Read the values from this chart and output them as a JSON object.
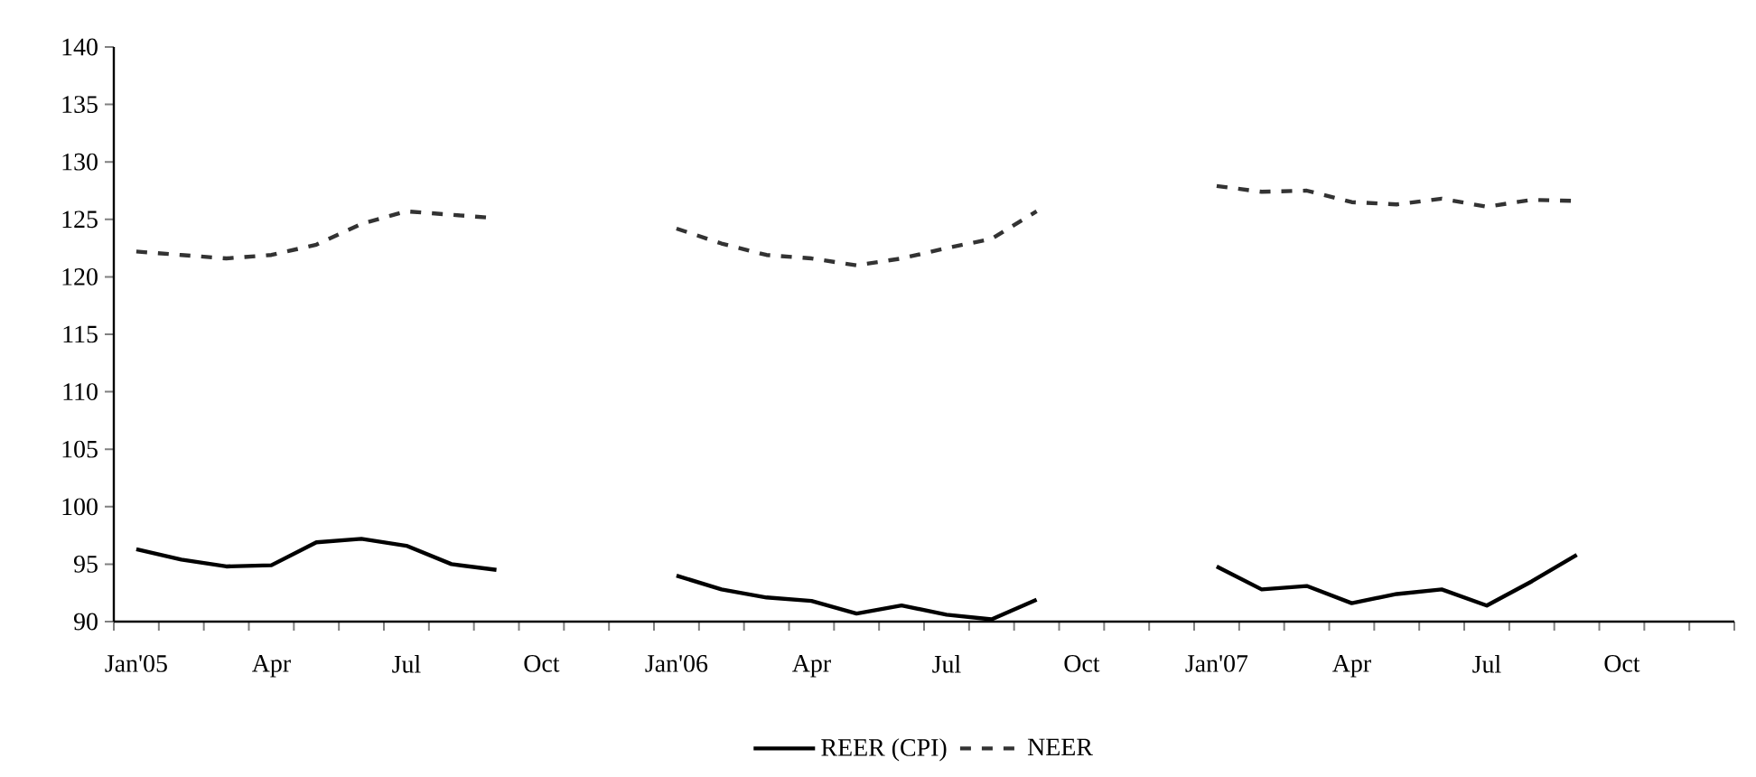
{
  "chart_data": {
    "type": "line",
    "categories": [
      "Jan'05",
      null,
      null,
      "Apr",
      null,
      null,
      "Jul",
      null,
      null,
      "Oct",
      null,
      null,
      "Jan'06",
      null,
      null,
      "Apr",
      null,
      null,
      "Jul",
      null,
      null,
      "Oct",
      null,
      null,
      "Jan'07",
      null,
      null,
      "Apr",
      null,
      null,
      "Jul",
      null,
      null,
      "Oct",
      null,
      null
    ],
    "series": [
      {
        "name": "REER (CPI)",
        "color": "#000000",
        "line_style": "solid",
        "values": [
          96.3,
          95.4,
          94.8,
          94.9,
          96.9,
          97.2,
          96.6,
          95.0,
          94.5,
          null,
          null,
          null,
          94.0,
          92.8,
          92.1,
          91.8,
          90.7,
          91.4,
          90.6,
          90.2,
          91.9,
          null,
          null,
          null,
          94.8,
          92.8,
          93.1,
          91.6,
          92.4,
          92.8,
          91.4,
          93.5,
          95.8,
          null,
          null,
          null
        ]
      },
      {
        "name": "NEER",
        "color": "#333333",
        "line_style": "dashed",
        "values": [
          122.2,
          121.9,
          121.6,
          121.9,
          122.8,
          124.6,
          125.7,
          125.4,
          125.1,
          null,
          null,
          null,
          124.2,
          122.9,
          121.9,
          121.6,
          121.0,
          121.6,
          122.5,
          123.3,
          125.7,
          null,
          null,
          null,
          127.9,
          127.4,
          127.5,
          126.5,
          126.3,
          126.8,
          126.1,
          126.7,
          126.6,
          null,
          null,
          null
        ]
      }
    ],
    "ylim": [
      90,
      140
    ],
    "yticks": [
      90,
      95,
      100,
      105,
      110,
      115,
      120,
      125,
      130,
      135,
      140
    ],
    "grid": false,
    "legend": "bottom",
    "marker": "none"
  }
}
